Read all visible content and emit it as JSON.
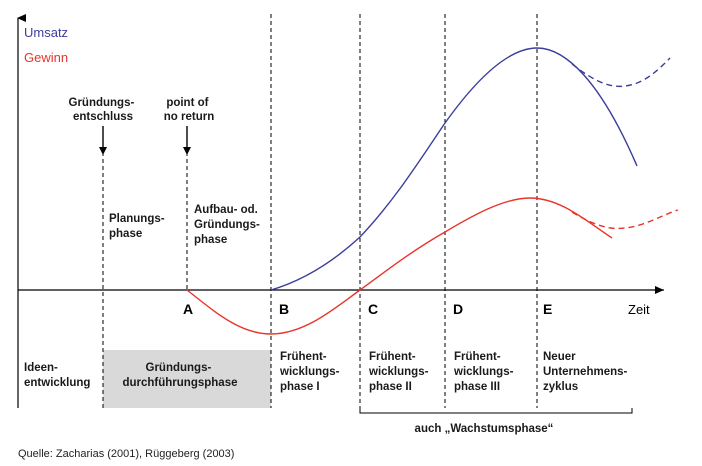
{
  "legend": {
    "umsatz": "Umsatz",
    "gewinn": "Gewinn"
  },
  "colors": {
    "umsatz": "#3b3f9b",
    "gewinn": "#e8342a",
    "axis": "#000000",
    "shade": "#d9d9d9"
  },
  "x_axis_label": "Zeit",
  "points": [
    "A",
    "B",
    "C",
    "D",
    "E"
  ],
  "top_annotations": {
    "gruendungsentschluss": [
      "Gründungs-",
      "entschluss"
    ],
    "point_of_no_return": [
      "point of",
      "no return"
    ]
  },
  "upper_phases": {
    "planung": [
      "Planungs-",
      "phase"
    ],
    "aufbau": [
      "Aufbau- od.",
      "Gründungs-",
      "phase"
    ]
  },
  "lower_phases": {
    "ideen": [
      "Ideen-",
      "entwicklung"
    ],
    "gruendungsdurchfuehrung": [
      "Gründungs-",
      "durchführungsphase"
    ],
    "frueh1": [
      "Frühent-",
      "wicklungs-",
      "phase I"
    ],
    "frueh2": [
      "Frühent-",
      "wicklungs-",
      "phase II"
    ],
    "frueh3": [
      "Frühent-",
      "wicklungs-",
      "phase III"
    ],
    "neuer": [
      "Neuer",
      "Unternehmens-",
      "zyklus"
    ]
  },
  "bracket_label": "auch „Wachstumsphase“",
  "source": "Quelle: Zacharias (2001), Rüggeberg (2003)"
}
